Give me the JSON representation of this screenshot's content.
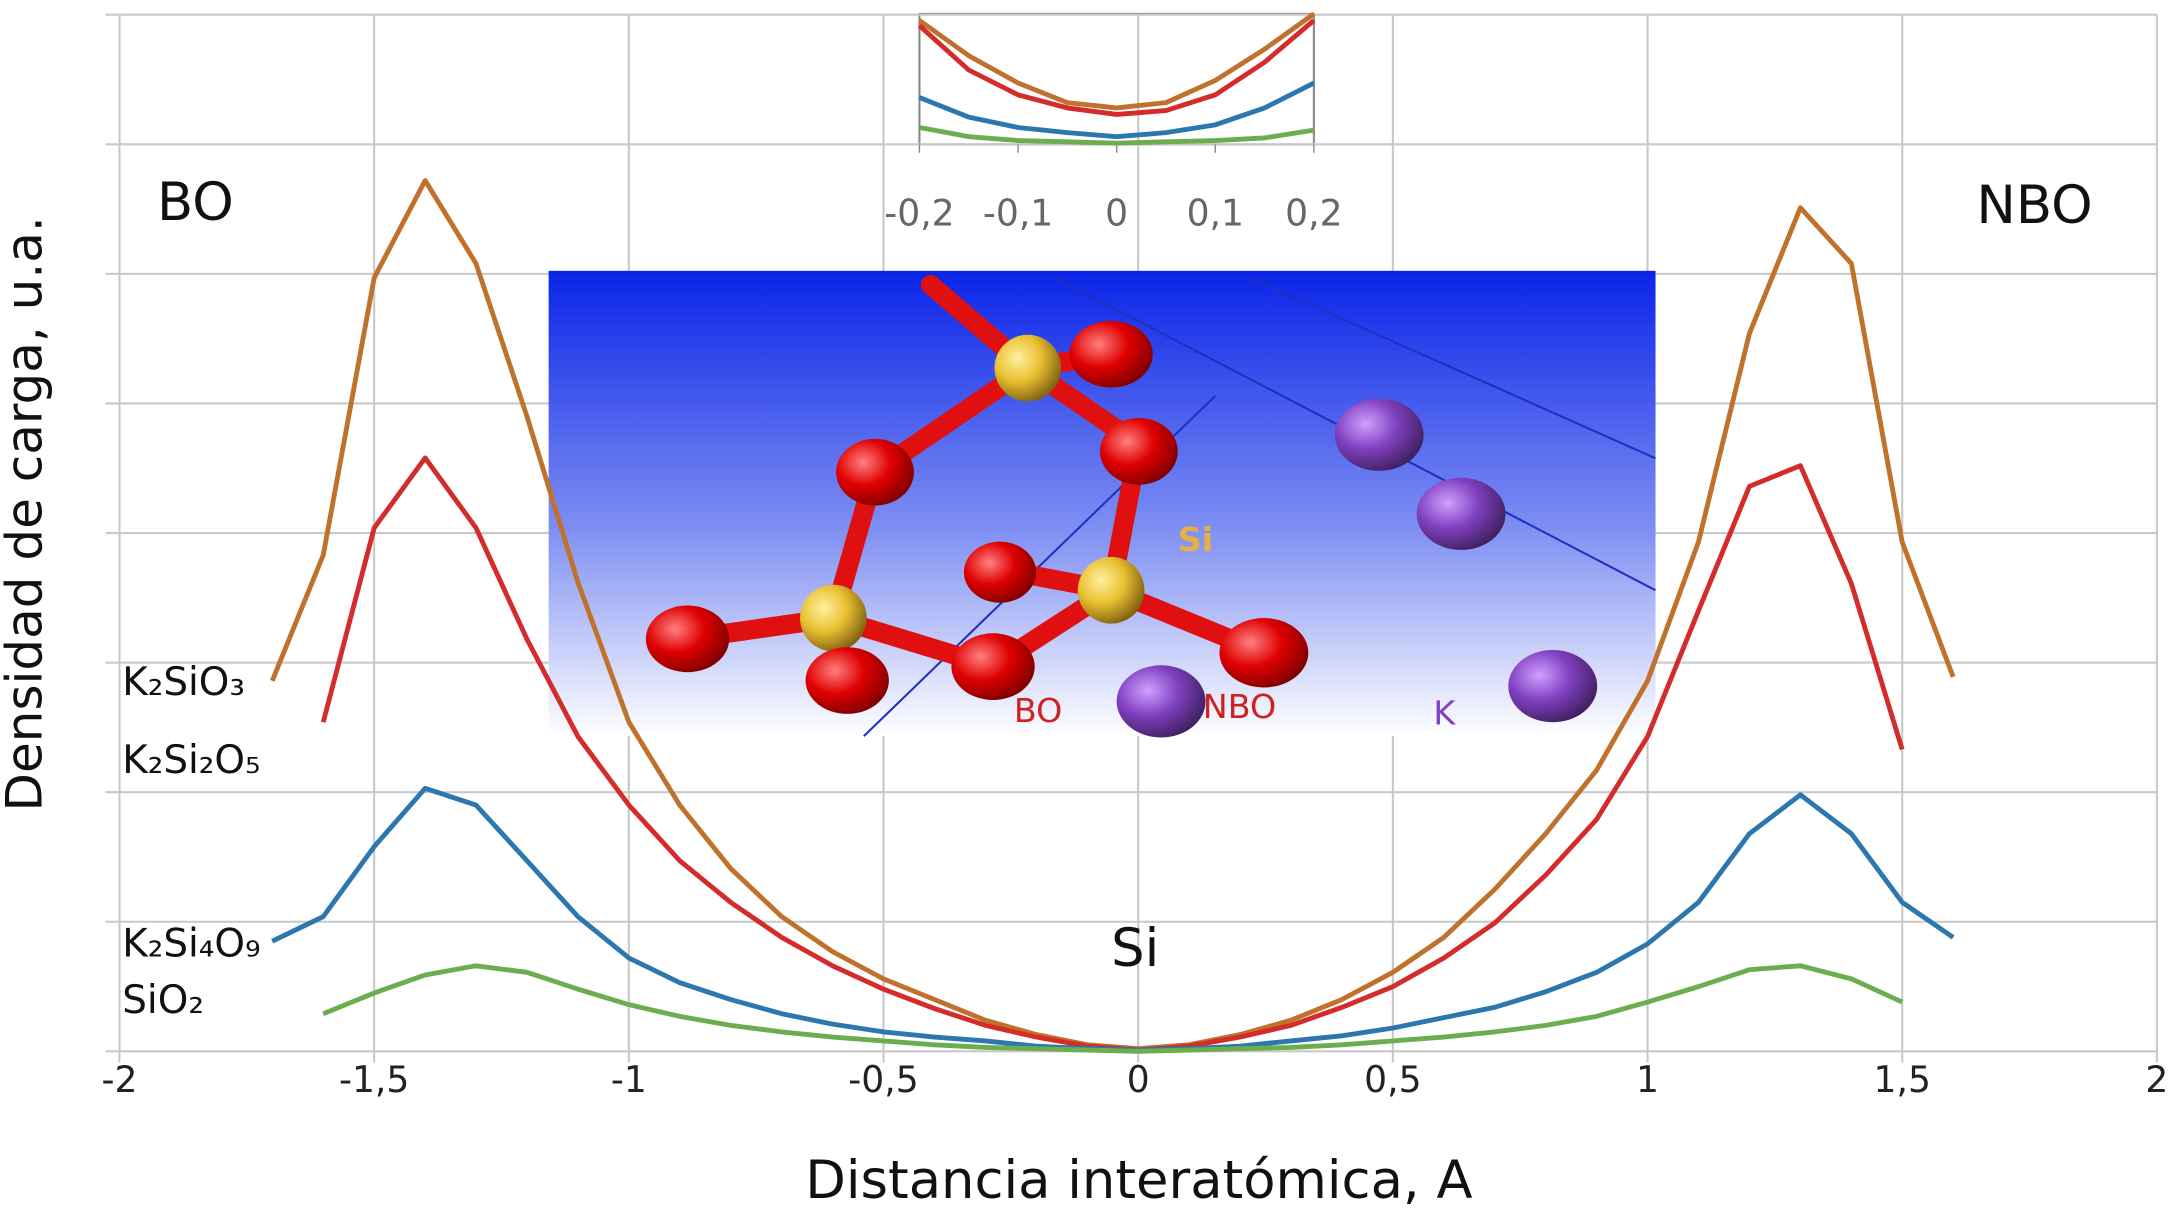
{
  "chart_data": [
    {
      "type": "line",
      "x_label": "Distancia interatómica, A",
      "y_label": "Densidad de carga, u.a.",
      "annotations": [
        "BO",
        "NBO",
        "Si"
      ],
      "image_labels": [
        "Si",
        "BO",
        "NBO",
        "K"
      ],
      "x": [
        -1.7,
        -1.6,
        -1.5,
        -1.4,
        -1.3,
        -1.2,
        -1.1,
        -1.0,
        -0.9,
        -0.8,
        -0.7,
        -0.6,
        -0.5,
        -0.4,
        -0.3,
        -0.2,
        -0.1,
        0,
        0.1,
        0.2,
        0.3,
        0.4,
        0.5,
        0.6,
        0.7,
        0.8,
        0.9,
        1.0,
        1.1,
        1.2,
        1.3,
        1.4,
        1.5,
        1.6
      ],
      "series": [
        {
          "name": "K₂SiO₃",
          "color": "#c0712c",
          "values": [
            2.86,
            3.83,
            5.97,
            6.72,
            6.08,
            4.9,
            3.62,
            2.54,
            1.9,
            1.41,
            1.04,
            0.77,
            0.56,
            0.4,
            0.24,
            0.13,
            0.05,
            0.02,
            0.05,
            0.13,
            0.24,
            0.4,
            0.61,
            0.88,
            1.25,
            1.68,
            2.17,
            2.86,
            3.93,
            5.54,
            6.51,
            6.08,
            3.93,
            2.89
          ]
        },
        {
          "name": "K₂Si₂O₅",
          "color": "#d42b2b",
          "values": [
            null,
            2.54,
            4.04,
            4.58,
            4.04,
            3.18,
            2.43,
            1.9,
            1.47,
            1.15,
            0.88,
            0.66,
            0.48,
            0.33,
            0.2,
            0.11,
            0.04,
            0.01,
            0.04,
            0.11,
            0.2,
            0.34,
            0.5,
            0.72,
            0.99,
            1.36,
            1.79,
            2.43,
            3.4,
            4.36,
            4.52,
            3.61,
            2.33,
            null
          ]
        },
        {
          "name": "K₂Si₄O₉",
          "color": "#2b77ae",
          "values": [
            0.85,
            1.04,
            1.58,
            2.03,
            1.9,
            1.47,
            1.04,
            0.72,
            0.53,
            0.4,
            0.29,
            0.21,
            0.15,
            0.11,
            0.08,
            0.04,
            0.02,
            0.01,
            0.02,
            0.04,
            0.08,
            0.12,
            0.18,
            0.26,
            0.34,
            0.46,
            0.61,
            0.83,
            1.15,
            1.68,
            1.98,
            1.68,
            1.15,
            0.88
          ]
        },
        {
          "name": "SiO₂",
          "color": "#6cae4f",
          "values": [
            null,
            0.29,
            0.45,
            0.59,
            0.66,
            0.61,
            0.48,
            0.36,
            0.27,
            0.2,
            0.15,
            0.11,
            0.08,
            0.05,
            0.03,
            0.02,
            0.01,
            0,
            0.01,
            0.02,
            0.03,
            0.05,
            0.08,
            0.11,
            0.15,
            0.2,
            0.27,
            0.38,
            0.5,
            0.63,
            0.66,
            0.56,
            0.38,
            null
          ]
        }
      ],
      "xlim": [
        -2,
        2
      ],
      "xticks": [
        -2,
        {
          "value": -1.5,
          "label": "-1,5"
        },
        -1,
        {
          "value": -0.5,
          "label": "-0,5"
        },
        0,
        {
          "value": 0.5,
          "label": "0,5"
        },
        1,
        {
          "value": 1.5,
          "label": "1,5"
        },
        2
      ],
      "ylim": [
        0,
        8
      ],
      "yticks": [
        0,
        1,
        2,
        3,
        4,
        5,
        6,
        7,
        8
      ],
      "grid": true
    },
    {
      "type": "line",
      "x": [
        -0.2,
        -0.15,
        -0.1,
        -0.05,
        0,
        0.05,
        0.1,
        0.15,
        0.2
      ],
      "series": [
        {
          "color": "#c0712c",
          "values": [
            0.95,
            0.68,
            0.47,
            0.32,
            0.28,
            0.32,
            0.49,
            0.73,
            1.0
          ]
        },
        {
          "color": "#d42b2b",
          "values": [
            0.91,
            0.57,
            0.38,
            0.28,
            0.23,
            0.26,
            0.38,
            0.63,
            0.95
          ]
        },
        {
          "color": "#2b77ae",
          "values": [
            0.36,
            0.21,
            0.13,
            0.09,
            0.06,
            0.09,
            0.15,
            0.28,
            0.47
          ]
        },
        {
          "color": "#6cae4f",
          "values": [
            0.13,
            0.06,
            0.03,
            0.02,
            0.01,
            0.02,
            0.03,
            0.05,
            0.11
          ]
        }
      ],
      "xlim": [
        -0.2,
        0.2
      ],
      "xticks": [
        {
          "value": -0.2,
          "label": "-0,2"
        },
        {
          "value": -0.1,
          "label": "-0,1"
        },
        0,
        {
          "value": 0.1,
          "label": "0,1"
        },
        {
          "value": 0.2,
          "label": "0,2"
        }
      ],
      "ylim": [
        0,
        1
      ],
      "grid": false
    }
  ]
}
